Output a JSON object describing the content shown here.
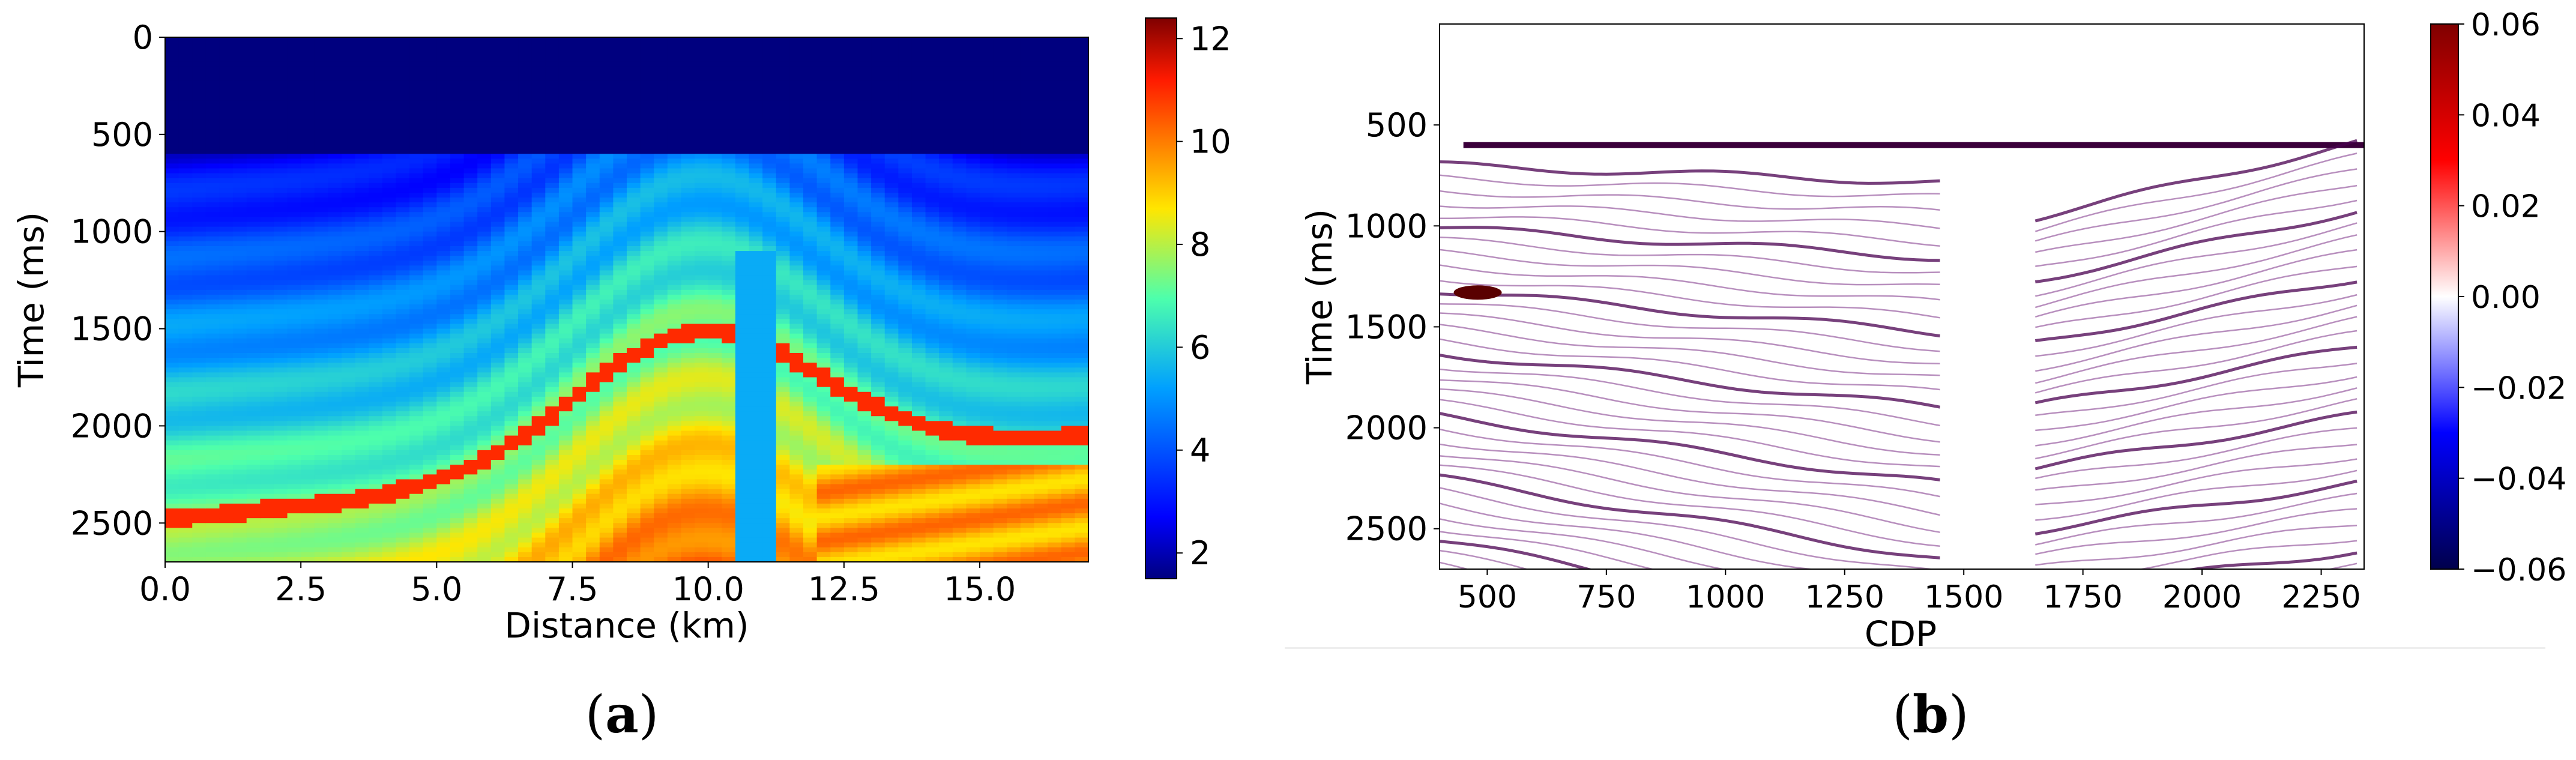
{
  "captions": {
    "a": "a",
    "b": "b"
  },
  "chart_data": [
    {
      "type": "heatmap",
      "title": "",
      "xlabel": "Distance (km)",
      "ylabel": "Time (ms)",
      "x_ticks": [
        "0.0",
        "2.5",
        "5.0",
        "7.5",
        "10.0",
        "12.5",
        "15.0"
      ],
      "x_tick_values": [
        0,
        2.5,
        5,
        7.5,
        10,
        12.5,
        15
      ],
      "y_ticks": [
        "0",
        "500",
        "1000",
        "1500",
        "2000",
        "2500"
      ],
      "y_tick_values": [
        0,
        500,
        1000,
        1500,
        2000,
        2500
      ],
      "xlim": [
        0,
        17
      ],
      "ylim": [
        2700,
        0
      ],
      "colormap": "jet",
      "colorbar": {
        "range": [
          1.5,
          12.4
        ],
        "ticks": [
          "2",
          "4",
          "6",
          "8",
          "10",
          "12"
        ],
        "tick_values": [
          2,
          4,
          6,
          8,
          10,
          12
        ]
      },
      "structure": {
        "water_bottom_ms": 600,
        "water_value": 1.5,
        "dome_center_km": 9.8,
        "salt_flank_km": 10.5,
        "basal_layer_ms_at_0km": 2480,
        "basal_layer_value": 11
      }
    },
    {
      "type": "heatmap",
      "title": "",
      "xlabel": "CDP",
      "ylabel": "Time (ms)",
      "x_ticks": [
        "500",
        "750",
        "1000",
        "1250",
        "1500",
        "1750",
        "2000",
        "2250"
      ],
      "x_tick_values": [
        500,
        750,
        1000,
        1250,
        1500,
        1750,
        2000,
        2250
      ],
      "y_ticks": [
        "500",
        "1000",
        "1500",
        "2000",
        "2500"
      ],
      "y_tick_values": [
        500,
        1000,
        1500,
        2000,
        2500
      ],
      "xlim": [
        400,
        2340
      ],
      "ylim": [
        2700,
        0
      ],
      "colormap": "seismic",
      "colorbar": {
        "range": [
          -0.06,
          0.06
        ],
        "ticks": [
          "0.06",
          "0.04",
          "0.02",
          "0.00",
          "−0.02",
          "−0.04",
          "−0.06"
        ],
        "tick_values": [
          0.06,
          0.04,
          0.02,
          0.0,
          -0.02,
          -0.04,
          -0.06
        ]
      },
      "structure": {
        "water_bottom_ms": 600,
        "notable_reflector_ms_at_left": 1330
      }
    }
  ]
}
